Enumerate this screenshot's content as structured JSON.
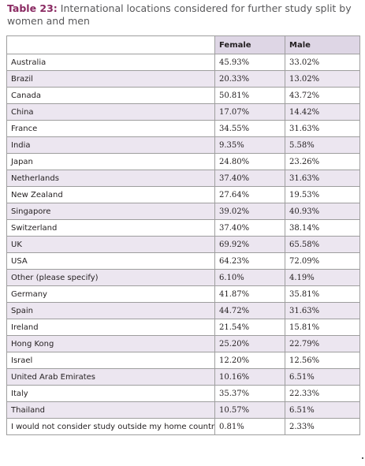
{
  "caption": {
    "label": "Table 23:",
    "text": "International locations considered for further study split by women and men"
  },
  "table": {
    "columns": [
      "",
      "Female",
      "Male"
    ],
    "rows": [
      {
        "location": "Australia",
        "female": "45.93%",
        "male": "33.02%"
      },
      {
        "location": "Brazil",
        "female": "20.33%",
        "male": "13.02%"
      },
      {
        "location": "Canada",
        "female": "50.81%",
        "male": "43.72%"
      },
      {
        "location": "China",
        "female": "17.07%",
        "male": "14.42%"
      },
      {
        "location": "France",
        "female": "34.55%",
        "male": "31.63%"
      },
      {
        "location": "India",
        "female": "9.35%",
        "male": "5.58%"
      },
      {
        "location": "Japan",
        "female": "24.80%",
        "male": "23.26%"
      },
      {
        "location": "Netherlands",
        "female": "37.40%",
        "male": "31.63%"
      },
      {
        "location": "New Zealand",
        "female": "27.64%",
        "male": "19.53%"
      },
      {
        "location": "Singapore",
        "female": "39.02%",
        "male": "40.93%"
      },
      {
        "location": "Switzerland",
        "female": "37.40%",
        "male": "38.14%"
      },
      {
        "location": "UK",
        "female": "69.92%",
        "male": "65.58%"
      },
      {
        "location": "USA",
        "female": "64.23%",
        "male": "72.09%"
      },
      {
        "location": "Other (please specify)",
        "female": "6.10%",
        "male": "4.19%"
      },
      {
        "location": "Germany",
        "female": "41.87%",
        "male": "35.81%"
      },
      {
        "location": "Spain",
        "female": "44.72%",
        "male": "31.63%"
      },
      {
        "location": "Ireland",
        "female": "21.54%",
        "male": "15.81%"
      },
      {
        "location": "Hong Kong",
        "female": "25.20%",
        "male": "22.79%"
      },
      {
        "location": "Israel",
        "female": "12.20%",
        "male": "12.56%"
      },
      {
        "location": "United Arab Emirates",
        "female": "10.16%",
        "male": "6.51%"
      },
      {
        "location": "Italy",
        "female": "35.37%",
        "male": "22.33%"
      },
      {
        "location": "Thailand",
        "female": "10.57%",
        "male": "6.51%"
      },
      {
        "location": "I would not consider study outside my home country",
        "female": "0.81%",
        "male": "2.33%"
      }
    ]
  },
  "colors": {
    "label_accent": "#8a2a62",
    "header_fill": "#ded6e5",
    "stripe_fill": "#ece6f0",
    "grid_line": "#9e9e9e"
  }
}
